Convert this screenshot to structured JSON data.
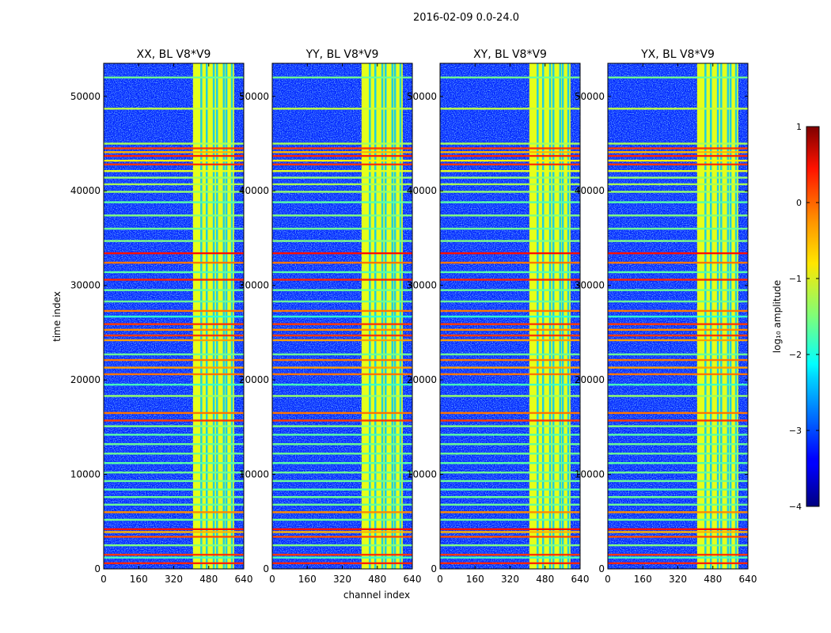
{
  "figure": {
    "suptitle": "2016-02-09 0.0-24.0"
  },
  "chart_data": {
    "type": "heatmap",
    "suptitle": "2016-02-09 0.0-24.0",
    "xlabel": "channel index",
    "ylabel": "time index",
    "xlim": [
      0,
      640
    ],
    "ylim": [
      0,
      53500
    ],
    "xticks": [
      0,
      160,
      320,
      480,
      640
    ],
    "yticks": [
      0,
      10000,
      20000,
      30000,
      40000,
      50000
    ],
    "colorbar": {
      "label": "log₁₀ amplitude",
      "range": [
        -4,
        1
      ],
      "ticks": [
        -4,
        -3,
        -2,
        -1,
        0,
        1
      ],
      "colormap": "jet"
    },
    "panels": [
      {
        "title": "XX, BL V8*V9",
        "pol": "XX"
      },
      {
        "title": "YY, BL V8*V9",
        "pol": "YY"
      },
      {
        "title": "XY, BL V8*V9",
        "pol": "XY"
      },
      {
        "title": "YX, BL V8*V9",
        "pol": "YX"
      }
    ],
    "features": {
      "background_level": -3.2,
      "rfi_band_channels": [
        408,
        596
      ],
      "rfi_band_level": -1.0,
      "rfi_subband_dividers": [
        445,
        470,
        502,
        517,
        548,
        560,
        585
      ],
      "flagged_time_rows": [
        {
          "t": 600,
          "level": 0.2
        },
        {
          "t": 1200,
          "level": -1.8
        },
        {
          "t": 1500,
          "level": 0.1
        },
        {
          "t": 2500,
          "level": -1.5
        },
        {
          "t": 3400,
          "level": 0.0
        },
        {
          "t": 3900,
          "level": -0.5
        },
        {
          "t": 4200,
          "level": 0.3
        },
        {
          "t": 5200,
          "level": -1.6
        },
        {
          "t": 6000,
          "level": -0.3
        },
        {
          "t": 6800,
          "level": -1.6
        },
        {
          "t": 7600,
          "level": -1.6
        },
        {
          "t": 8400,
          "level": -1.7
        },
        {
          "t": 9300,
          "level": -1.6
        },
        {
          "t": 10200,
          "level": -1.6
        },
        {
          "t": 11200,
          "level": -1.7
        },
        {
          "t": 12200,
          "level": -1.6
        },
        {
          "t": 13200,
          "level": -1.6
        },
        {
          "t": 14200,
          "level": -1.7
        },
        {
          "t": 15100,
          "level": -1.5
        },
        {
          "t": 15700,
          "level": 0.1
        },
        {
          "t": 16500,
          "level": -0.2
        },
        {
          "t": 18300,
          "level": -1.4
        },
        {
          "t": 19500,
          "level": -1.8
        },
        {
          "t": 20600,
          "level": -0.2
        },
        {
          "t": 21300,
          "level": -0.4
        },
        {
          "t": 22100,
          "level": -0.2
        },
        {
          "t": 22700,
          "level": -1.6
        },
        {
          "t": 24200,
          "level": -0.4
        },
        {
          "t": 24700,
          "level": 0.1
        },
        {
          "t": 25300,
          "level": -0.3
        },
        {
          "t": 25900,
          "level": 0.1
        },
        {
          "t": 26700,
          "level": -1.9
        },
        {
          "t": 27300,
          "level": -0.2
        },
        {
          "t": 28300,
          "level": -1.6
        },
        {
          "t": 29500,
          "level": -1.6
        },
        {
          "t": 30600,
          "level": 0.2
        },
        {
          "t": 31400,
          "level": -1.7
        },
        {
          "t": 32400,
          "level": -0.2
        },
        {
          "t": 33400,
          "level": 0.3
        },
        {
          "t": 34700,
          "level": -1.5
        },
        {
          "t": 36000,
          "level": -1.6
        },
        {
          "t": 37400,
          "level": -1.5
        },
        {
          "t": 38800,
          "level": -1.7
        },
        {
          "t": 39900,
          "level": -1.4
        },
        {
          "t": 40700,
          "level": -1.3
        },
        {
          "t": 41400,
          "level": -1.4
        },
        {
          "t": 42100,
          "level": -1.0
        },
        {
          "t": 42800,
          "level": 0.1
        },
        {
          "t": 43200,
          "level": -0.8
        },
        {
          "t": 43700,
          "level": 0.2
        },
        {
          "t": 44100,
          "level": -0.5
        },
        {
          "t": 44500,
          "level": 0.1
        },
        {
          "t": 45000,
          "level": -1.3
        },
        {
          "t": 48700,
          "level": -1.2
        },
        {
          "t": 52000,
          "level": -1.6
        }
      ]
    }
  }
}
